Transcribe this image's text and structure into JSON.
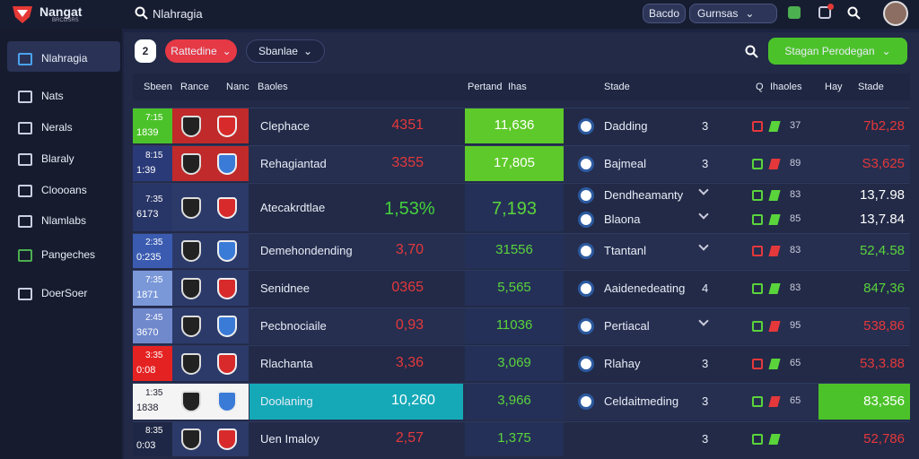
{
  "topbar": {
    "logo": "Nangat",
    "logo_sub": "BRCGSRS",
    "search": "Nlahragia",
    "button": "Bacdo",
    "dropdown": "Gurnsas"
  },
  "sidebar": [
    "Nlahragia",
    "Nats",
    "Nerals",
    "Blaraly",
    "Cloooans",
    "Nlamlabs",
    "Pangeches",
    "DoerSoer"
  ],
  "toolbar": {
    "number": "2",
    "filter": "Rattedine",
    "select": "Sbanlae",
    "action": "Stagan Perodegan"
  },
  "table": {
    "columns": [
      "Sbeen",
      "Rance",
      "Nanc",
      "Baoles",
      "Pertand",
      "Ihas",
      "Stade",
      "Q",
      "Ihaoles",
      "Hay",
      "Stade"
    ],
    "rows": [
      {
        "t1": "7:15",
        "t2": "1839",
        "name": "Clephace",
        "v1": "4351",
        "v2": "11,636",
        "right": [
          {
            "name": "Dadding",
            "num": "3",
            "small": "37",
            "final": "7b2,28"
          }
        ]
      },
      {
        "t1": "8:15",
        "t2": "1:39",
        "name": "Rehagiantad",
        "v1": "3355",
        "v2": "17,805",
        "right": [
          {
            "name": "Bajmeal",
            "num": "3",
            "small": "89",
            "final": "S3,625"
          }
        ]
      },
      {
        "t1": "7:35",
        "t2": "6173",
        "name": "Atecakrdtlae",
        "v1": "1,53%",
        "v2": "7,193",
        "right": [
          {
            "name": "Dendheamanty",
            "small": "83",
            "final": "13,7.98"
          },
          {
            "name": "Blaona",
            "small": "85",
            "final": "13,7.84"
          }
        ]
      },
      {
        "t1": "2:35",
        "t2": "0:235",
        "name": "Demehondending",
        "v1": "3,70",
        "v2": "31556",
        "right": [
          {
            "name": "Ttantanl",
            "small": "83",
            "final": "52,4.58"
          }
        ]
      },
      {
        "t1": "7:35",
        "t2": "1871",
        "name": "Senidnee",
        "v1": "0365",
        "v2": "5,565",
        "right": [
          {
            "name": "Aaidenedeating",
            "num": "4",
            "small": "83",
            "final": "847,36"
          }
        ]
      },
      {
        "t1": "2:45",
        "t2": "3670",
        "name": "Pecbnociaile",
        "v1": "0,93",
        "v2": "11036",
        "right": [
          {
            "name": "Pertiacal",
            "small": "95",
            "final": "538,86"
          }
        ]
      },
      {
        "t1": "3:35",
        "t2": "0:08",
        "name": "Rlachanta",
        "v1": "3,36",
        "v2": "3,069",
        "right": [
          {
            "name": "Rlahay",
            "num": "3",
            "small": "65",
            "final": "53,3.88"
          }
        ]
      },
      {
        "t1": "1:35",
        "t2": "1838",
        "name": "Doolaning",
        "v1": "10,260",
        "v2": "3,966",
        "right": [
          {
            "name": "Celdaitmeding",
            "num": "3",
            "small": "65",
            "final": "83,356"
          }
        ]
      },
      {
        "t1": "8:35",
        "t2": "0:03",
        "name": "Uen Imaloy",
        "v1": "2,57",
        "v2": "1,375",
        "right": [
          {
            "num": "3",
            "final": "52,786"
          }
        ]
      }
    ]
  }
}
